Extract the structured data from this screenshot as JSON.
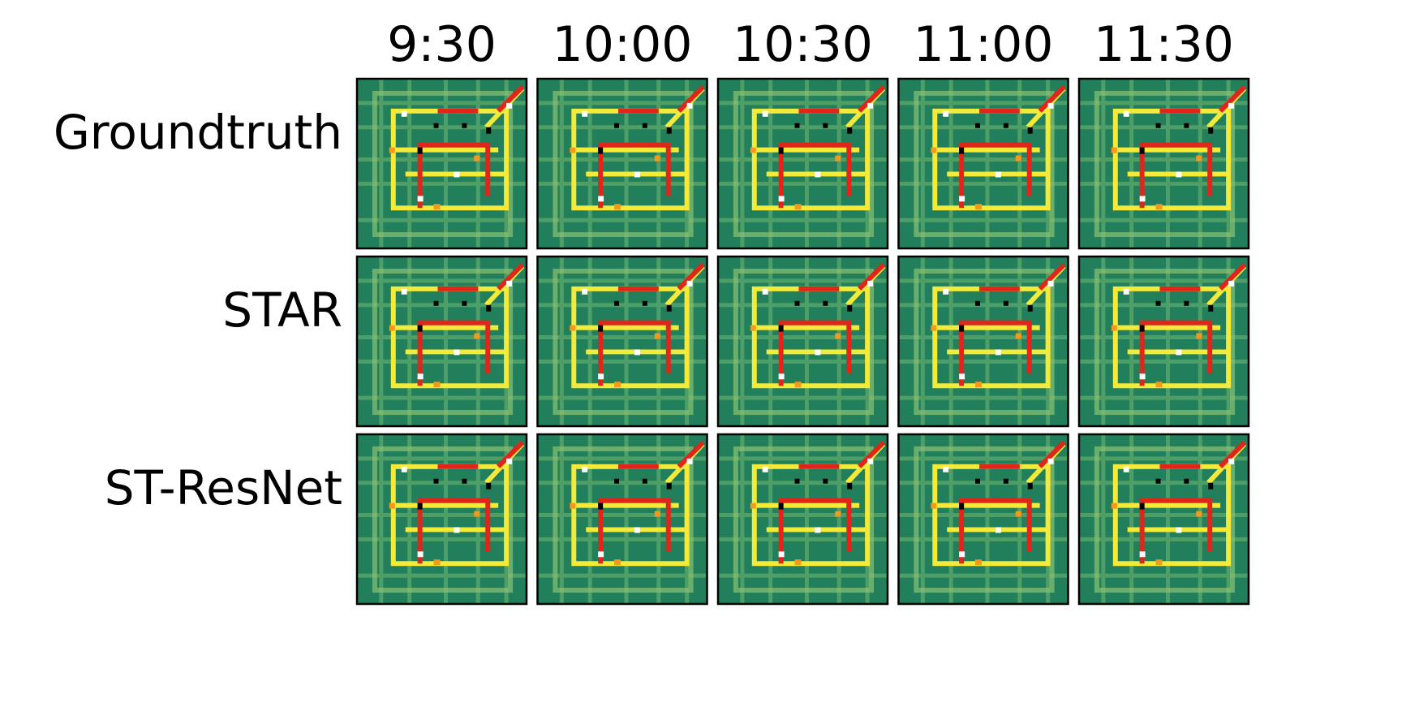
{
  "columns": [
    "9:30",
    "10:00",
    "10:30",
    "11:00",
    "11:30"
  ],
  "rows": [
    "Groundtruth",
    "STAR",
    "ST-ResNet"
  ]
}
